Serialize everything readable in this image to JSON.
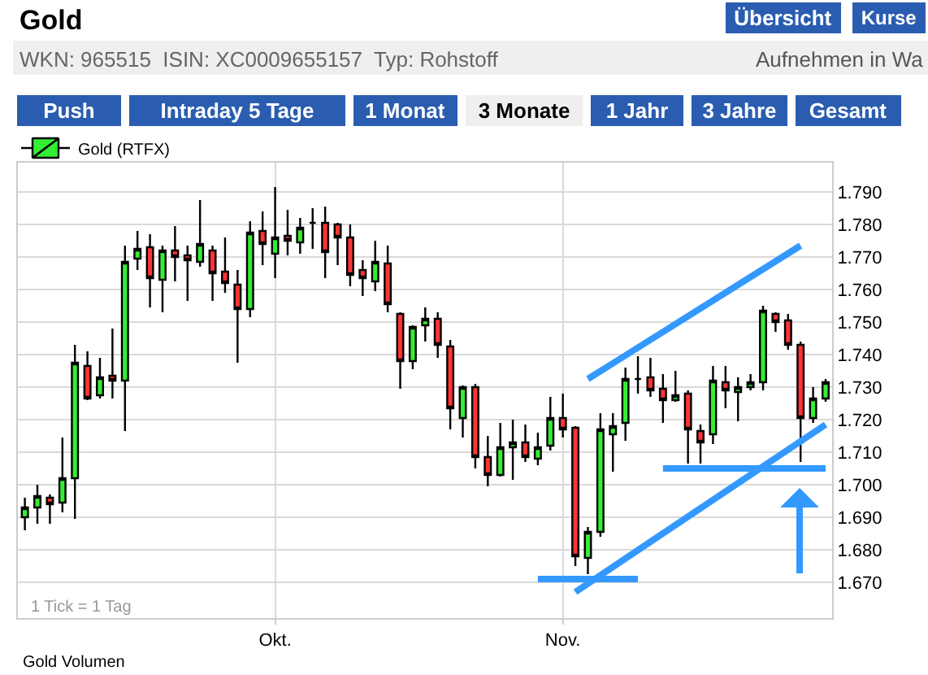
{
  "chart_data": {
    "type": "candlestick",
    "title": "Gold",
    "subtitle": "WKN: 965515  ISIN: XC0009655157  Typ: Rohstoff",
    "annotations": [
      "1 Tick = 1 Tag",
      "Gold Volumen",
      "Übersicht",
      "Kurse",
      "Aufnehmen in Wa",
      "Push",
      "Intraday 5 Tage",
      "1 Monat",
      "3 Monate",
      "1 Jahr",
      "3 Jahre",
      "Gesamt"
    ],
    "categories": [
      null,
      null,
      null,
      null,
      null,
      null,
      null,
      null,
      null,
      null,
      null,
      null,
      null,
      null,
      null,
      null,
      null,
      null,
      null,
      null,
      "Okt.",
      null,
      null,
      null,
      null,
      null,
      null,
      null,
      null,
      null,
      null,
      null,
      null,
      null,
      null,
      null,
      null,
      null,
      null,
      null,
      null,
      null,
      null,
      "Nov.",
      null,
      null,
      null,
      null,
      null,
      null,
      null,
      null,
      null,
      null,
      null,
      null,
      null,
      null,
      null,
      null,
      null,
      null,
      null,
      null,
      null
    ],
    "series": [
      {
        "name": "Gold (RTFX)",
        "colors": [
          "#33ee33",
          "#33ee33",
          "#ff3333",
          "#33ee33",
          "#33ee33",
          "#ff3333",
          "#33ee33",
          "#ff3333",
          "#33ee33",
          "#33ee33",
          "#ff3333",
          "#33ee33",
          "#ff3333",
          "#ff3333",
          "#33ee33",
          "#ff3333",
          "#ff3333",
          "#ff3333",
          "#33ee33",
          "#ff3333",
          "#33ee33",
          "#ff3333",
          "#33ee33",
          "#000000",
          "#ff3333",
          "#ff3333",
          "#ff3333",
          "#ff3333",
          "#33ee33",
          "#ff3333",
          "#ff3333",
          "#33ee33",
          "#33ee33",
          "#ff3333",
          "#ff3333",
          "#33ee33",
          "#ff3333",
          "#ff3333",
          "#33ee33",
          "#33ee33",
          "#ff3333",
          "#33ee33",
          "#33ee33",
          "#ff3333",
          "#ff3333",
          "#33ee33",
          "#33ee33",
          "#33ee33",
          "#33ee33",
          "#000000",
          "#ff3333",
          "#ff3333",
          "#33ee33",
          "#ff3333",
          "#ff3333",
          "#33ee33",
          "#ff3333",
          "#33ee33",
          "#33ee33",
          "#33ee33",
          "#ff3333",
          "#ff3333",
          "#ff3333",
          "#33ee33",
          "#33ee33"
        ],
        "ohlc": [
          [
            1690,
            1696,
            1686,
            1693
          ],
          [
            1693,
            1700,
            1688,
            1696.5
          ],
          [
            1696,
            1697,
            1688,
            1694
          ],
          [
            1694.5,
            1714.5,
            1691.5,
            1702
          ],
          [
            1702,
            1743,
            1689.5,
            1737.5
          ],
          [
            1736.5,
            1741,
            1726,
            1726.5
          ],
          [
            1727.5,
            1739,
            1726.5,
            1733
          ],
          [
            1733.5,
            1748,
            1726.5,
            1732
          ],
          [
            1732,
            1773.5,
            1716.5,
            1768.5
          ],
          [
            1769.5,
            1778,
            1766,
            1772.5
          ],
          [
            1773,
            1777,
            1754.5,
            1763.5
          ],
          [
            1763,
            1773.5,
            1753,
            1772
          ],
          [
            1772,
            1779.5,
            1762.5,
            1770
          ],
          [
            1770.5,
            1773.5,
            1756.5,
            1769
          ],
          [
            1768.5,
            1787.5,
            1767,
            1774
          ],
          [
            1772,
            1773.5,
            1756.5,
            1765
          ],
          [
            1765.5,
            1776,
            1759,
            1762
          ],
          [
            1761.5,
            1766,
            1737.5,
            1754
          ],
          [
            1754,
            1781,
            1751.5,
            1777.5
          ],
          [
            1778,
            1784,
            1767.5,
            1774
          ],
          [
            1771,
            1791.5,
            1763.5,
            1776
          ],
          [
            1776.5,
            1784.5,
            1770.5,
            1775
          ],
          [
            1774.5,
            1782,
            1771,
            1779
          ],
          [
            1780.5,
            1785,
            1772.5,
            1780.5
          ],
          [
            1780.5,
            1785.5,
            1763.5,
            1771.5
          ],
          [
            1780,
            1780.5,
            1767.5,
            1776
          ],
          [
            1776,
            1780,
            1761,
            1764.5
          ],
          [
            1766,
            1769,
            1758,
            1763.5
          ],
          [
            1762.5,
            1775,
            1759.5,
            1768.5
          ],
          [
            1768,
            1773.5,
            1753,
            1755.5
          ],
          [
            1752.5,
            1753,
            1729.5,
            1738
          ],
          [
            1738,
            1749,
            1735.5,
            1748.5
          ],
          [
            1749,
            1754.5,
            1744,
            1751
          ],
          [
            1751,
            1753,
            1739,
            1743
          ],
          [
            1742.5,
            1744.5,
            1717,
            1723.5
          ],
          [
            1720.5,
            1730.5,
            1714.5,
            1730
          ],
          [
            1730,
            1731,
            1705,
            1708.5
          ],
          [
            1708.5,
            1715,
            1699.5,
            1703
          ],
          [
            1703,
            1719,
            1702.5,
            1711.5
          ],
          [
            1711.5,
            1720,
            1701.5,
            1713
          ],
          [
            1713,
            1718.5,
            1707,
            1708.5
          ],
          [
            1708,
            1716,
            1706,
            1711.5
          ],
          [
            1712,
            1727,
            1710.5,
            1720.5
          ],
          [
            1720.5,
            1728,
            1714.5,
            1717
          ],
          [
            1717.5,
            1718,
            1675,
            1678
          ],
          [
            1677.5,
            1687,
            1672.5,
            1685.5
          ],
          [
            1685.5,
            1722,
            1684,
            1717
          ],
          [
            1715.5,
            1722,
            1704,
            1718
          ],
          [
            1719,
            1736,
            1713.5,
            1732.5
          ],
          [
            1732.5,
            1739.5,
            1728,
            1732.5
          ],
          [
            1733,
            1739,
            1727,
            1729
          ],
          [
            1729.5,
            1734,
            1719,
            1726
          ],
          [
            1726,
            1735,
            1725.5,
            1727.5
          ],
          [
            1728,
            1729,
            1706.5,
            1717
          ],
          [
            1716.5,
            1718.5,
            1706.5,
            1713
          ],
          [
            1715.5,
            1736.5,
            1712.5,
            1732
          ],
          [
            1731.5,
            1736.5,
            1723.5,
            1729
          ],
          [
            1728.5,
            1733,
            1719.5,
            1730
          ],
          [
            1730,
            1734,
            1729,
            1731.5
          ],
          [
            1731.5,
            1755,
            1729,
            1753.5
          ],
          [
            1752.5,
            1753,
            1747,
            1750
          ],
          [
            1750.5,
            1752.5,
            1741.5,
            1743
          ],
          [
            1743,
            1744,
            1707,
            1720.5
          ],
          [
            1720.5,
            1730,
            1719,
            1726.5
          ],
          [
            1726.5,
            1732.5,
            1725.5,
            1731.5
          ]
        ]
      },
      {
        "type": "line",
        "color": "#3399ff",
        "values": [
          null,
          null,
          null,
          null,
          null,
          null,
          null,
          null,
          null,
          null,
          null,
          null,
          null,
          null,
          null,
          null,
          null,
          null,
          null,
          null,
          null,
          null,
          null,
          null,
          null,
          null,
          null,
          null,
          null,
          null,
          null,
          null,
          null,
          null,
          null,
          null,
          null,
          null,
          null,
          null,
          null,
          null,
          null,
          null,
          null,
          1732.5,
          null,
          null,
          null,
          null,
          null,
          null,
          null,
          null,
          null,
          null,
          null,
          null,
          null,
          null,
          null,
          null,
          1773.5,
          null,
          null
        ]
      },
      {
        "type": "line",
        "color": "#3399ff",
        "values": [
          null,
          null,
          null,
          null,
          null,
          null,
          null,
          null,
          null,
          null,
          null,
          null,
          null,
          null,
          null,
          null,
          null,
          null,
          null,
          null,
          null,
          null,
          null,
          null,
          null,
          null,
          null,
          null,
          null,
          null,
          null,
          null,
          null,
          null,
          null,
          null,
          null,
          null,
          null,
          null,
          null,
          null,
          null,
          null,
          1667,
          null,
          null,
          null,
          null,
          null,
          null,
          null,
          null,
          null,
          null,
          null,
          null,
          null,
          null,
          null,
          null,
          null,
          null,
          null,
          1718.5
        ]
      },
      {
        "type": "line",
        "color": "#3399ff",
        "values": [
          null,
          null,
          null,
          null,
          null,
          null,
          null,
          null,
          null,
          null,
          null,
          null,
          null,
          null,
          null,
          null,
          null,
          null,
          null,
          null,
          null,
          null,
          null,
          null,
          null,
          null,
          null,
          null,
          null,
          null,
          null,
          null,
          null,
          null,
          null,
          null,
          null,
          null,
          null,
          null,
          null,
          1671,
          null,
          null,
          null,
          null,
          null,
          null,
          null,
          1671,
          null,
          null,
          null,
          null,
          null,
          null,
          null,
          null,
          null,
          null,
          null,
          null,
          null,
          null,
          null
        ]
      },
      {
        "type": "line",
        "color": "#3399ff",
        "values": [
          null,
          null,
          null,
          null,
          null,
          null,
          null,
          null,
          null,
          null,
          null,
          null,
          null,
          null,
          null,
          null,
          null,
          null,
          null,
          null,
          null,
          null,
          null,
          null,
          null,
          null,
          null,
          null,
          null,
          null,
          null,
          null,
          null,
          null,
          null,
          null,
          null,
          null,
          null,
          null,
          null,
          null,
          null,
          null,
          null,
          null,
          null,
          null,
          null,
          null,
          null,
          1705,
          null,
          null,
          null,
          null,
          null,
          null,
          null,
          null,
          null,
          null,
          null,
          null,
          1705
        ]
      }
    ],
    "ylim": [
      1659,
      1799
    ],
    "yticks": [
      {
        "value": 1670,
        "label": "1.670"
      },
      {
        "value": 1680,
        "label": "1.680"
      },
      {
        "value": 1690,
        "label": "1.690"
      },
      {
        "value": 1700,
        "label": "1.700"
      },
      {
        "value": 1710,
        "label": "1.710"
      },
      {
        "value": 1720,
        "label": "1.720"
      },
      {
        "value": 1730,
        "label": "1.730"
      },
      {
        "value": 1740,
        "label": "1.740"
      },
      {
        "value": 1750,
        "label": "1.750"
      },
      {
        "value": 1760,
        "label": "1.760"
      },
      {
        "value": 1770,
        "label": "1.770"
      },
      {
        "value": 1780,
        "label": "1.780"
      },
      {
        "value": 1790,
        "label": "1.790"
      }
    ],
    "grid": true,
    "legend": "top left"
  }
}
